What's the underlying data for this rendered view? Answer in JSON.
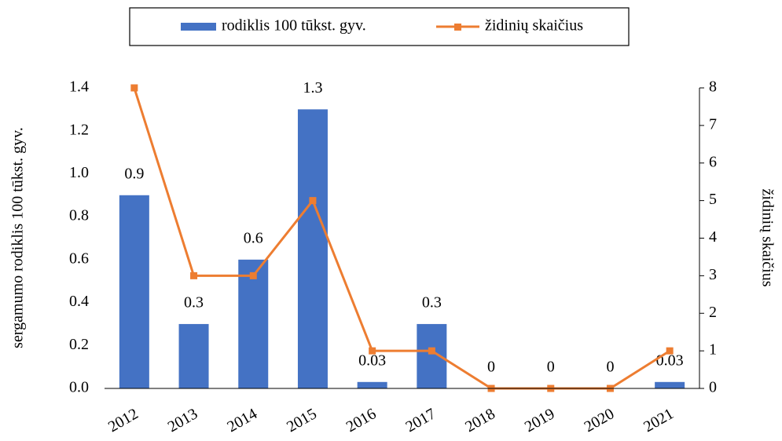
{
  "chart_data": {
    "type": "bar",
    "y_label": "sergamumo rodiklis 100 tūkst. gyv.",
    "y2_label": "židinių skaičius",
    "categories": [
      "2012",
      "2013",
      "2014",
      "2015",
      "2016",
      "2017",
      "2018",
      "2019",
      "2020",
      "2021"
    ],
    "series": [
      {
        "name": "rodiklis 100 tūkst. gyv.",
        "color": "#4472c4",
        "type": "bar",
        "values": [
          0.9,
          0.3,
          0.6,
          1.3,
          0.03,
          0.3,
          0,
          0,
          0,
          0.03
        ]
      },
      {
        "name": "židinių skaičius",
        "color": "#ed7d31",
        "type": "line",
        "axis": "y2",
        "values": [
          8,
          3,
          3,
          5,
          1,
          1,
          0,
          0,
          0,
          1
        ]
      }
    ],
    "ylim": [
      0,
      1.4
    ],
    "yticks": [
      {
        "value": 0,
        "label": "0.0"
      },
      0.2,
      0.4,
      0.6,
      0.8,
      {
        "value": 1,
        "label": "1.0"
      },
      1.2,
      1.4
    ],
    "y2lim": [
      0,
      8
    ],
    "y2ticks": [
      0,
      1,
      2,
      3,
      4,
      5,
      6,
      7,
      8
    ],
    "legend": "top",
    "grid": false
  }
}
